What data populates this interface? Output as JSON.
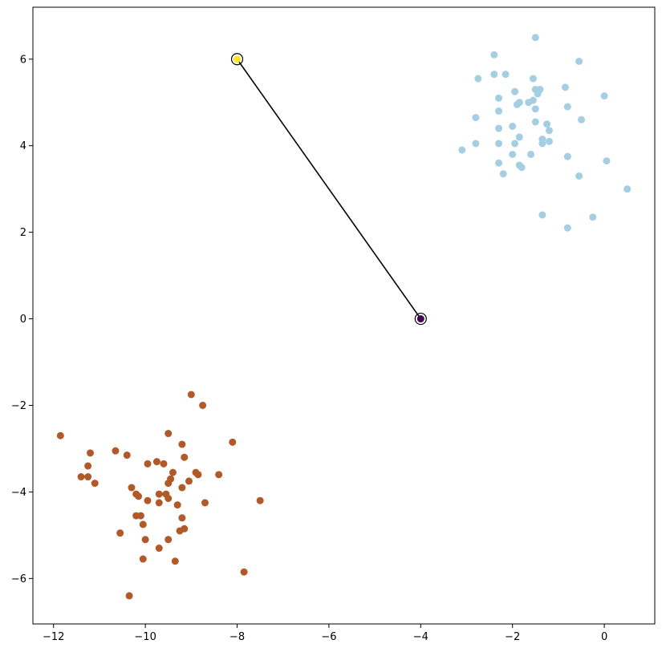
{
  "chart_data": {
    "type": "scatter",
    "title": "",
    "xlabel": "",
    "ylabel": "",
    "xlim": [
      -12.45,
      1.1
    ],
    "ylim": [
      -7.05,
      7.2
    ],
    "grid": false,
    "x_ticks": [
      -12,
      -10,
      -8,
      -6,
      -4,
      -2,
      0
    ],
    "y_ticks": [
      -6,
      -4,
      -2,
      0,
      2,
      4,
      6
    ],
    "series": [
      {
        "color": "#a6cee3",
        "points": [
          [
            -1.5,
            6.5
          ],
          [
            -2.4,
            6.1
          ],
          [
            -0.55,
            5.95
          ],
          [
            -2.4,
            5.65
          ],
          [
            -2.15,
            5.65
          ],
          [
            -2.75,
            5.55
          ],
          [
            -1.55,
            5.55
          ],
          [
            -0.85,
            5.35
          ],
          [
            -1.5,
            5.3
          ],
          [
            -1.4,
            5.3
          ],
          [
            -1.95,
            5.25
          ],
          [
            -1.45,
            5.2
          ],
          [
            0.0,
            5.15
          ],
          [
            -2.3,
            5.1
          ],
          [
            -1.55,
            5.05
          ],
          [
            -1.65,
            5.0
          ],
          [
            -1.85,
            5.0
          ],
          [
            -1.9,
            4.95
          ],
          [
            -0.8,
            4.9
          ],
          [
            -1.5,
            4.85
          ],
          [
            -2.3,
            4.8
          ],
          [
            -2.8,
            4.65
          ],
          [
            -0.5,
            4.6
          ],
          [
            -1.5,
            4.55
          ],
          [
            -1.25,
            4.5
          ],
          [
            -2.0,
            4.45
          ],
          [
            -2.3,
            4.4
          ],
          [
            -1.2,
            4.35
          ],
          [
            -1.85,
            4.2
          ],
          [
            -1.35,
            4.15
          ],
          [
            -1.2,
            4.1
          ],
          [
            -2.3,
            4.05
          ],
          [
            -2.8,
            4.05
          ],
          [
            -1.95,
            4.05
          ],
          [
            -1.35,
            4.05
          ],
          [
            -3.1,
            3.9
          ],
          [
            -2.0,
            3.8
          ],
          [
            -1.6,
            3.8
          ],
          [
            -0.8,
            3.75
          ],
          [
            0.05,
            3.65
          ],
          [
            -2.3,
            3.6
          ],
          [
            -1.85,
            3.55
          ],
          [
            -1.8,
            3.5
          ],
          [
            -2.2,
            3.35
          ],
          [
            -0.55,
            3.3
          ],
          [
            0.5,
            3.0
          ],
          [
            -1.35,
            2.4
          ],
          [
            -0.25,
            2.35
          ],
          [
            -0.8,
            2.1
          ]
        ]
      },
      {
        "color": "#b15928",
        "points": [
          [
            -9.0,
            -1.75
          ],
          [
            -8.75,
            -2.0
          ],
          [
            -11.85,
            -2.7
          ],
          [
            -9.5,
            -2.65
          ],
          [
            -8.1,
            -2.85
          ],
          [
            -9.2,
            -2.9
          ],
          [
            -10.65,
            -3.05
          ],
          [
            -11.2,
            -3.1
          ],
          [
            -10.4,
            -3.15
          ],
          [
            -9.15,
            -3.2
          ],
          [
            -9.75,
            -3.3
          ],
          [
            -9.95,
            -3.35
          ],
          [
            -9.6,
            -3.35
          ],
          [
            -11.25,
            -3.4
          ],
          [
            -9.4,
            -3.55
          ],
          [
            -8.9,
            -3.55
          ],
          [
            -8.85,
            -3.6
          ],
          [
            -8.4,
            -3.6
          ],
          [
            -11.4,
            -3.65
          ],
          [
            -11.25,
            -3.65
          ],
          [
            -9.45,
            -3.7
          ],
          [
            -9.05,
            -3.75
          ],
          [
            -11.1,
            -3.8
          ],
          [
            -9.5,
            -3.8
          ],
          [
            -9.2,
            -3.9
          ],
          [
            -10.3,
            -3.9
          ],
          [
            -9.7,
            -4.05
          ],
          [
            -9.55,
            -4.05
          ],
          [
            -10.2,
            -4.05
          ],
          [
            -10.15,
            -4.1
          ],
          [
            -9.5,
            -4.15
          ],
          [
            -9.95,
            -4.2
          ],
          [
            -7.5,
            -4.2
          ],
          [
            -9.7,
            -4.25
          ],
          [
            -8.7,
            -4.25
          ],
          [
            -9.3,
            -4.3
          ],
          [
            -10.2,
            -4.55
          ],
          [
            -10.1,
            -4.55
          ],
          [
            -9.2,
            -4.6
          ],
          [
            -10.05,
            -4.75
          ],
          [
            -9.15,
            -4.85
          ],
          [
            -9.25,
            -4.9
          ],
          [
            -10.55,
            -4.95
          ],
          [
            -10.0,
            -5.1
          ],
          [
            -9.5,
            -5.1
          ],
          [
            -9.7,
            -5.3
          ],
          [
            -10.05,
            -5.55
          ],
          [
            -9.35,
            -5.6
          ],
          [
            -7.85,
            -5.85
          ],
          [
            -10.35,
            -6.4
          ]
        ]
      }
    ],
    "centroids": [
      {
        "x": -8.0,
        "y": 6.0,
        "color": "#fde725"
      },
      {
        "x": -4.0,
        "y": 0.0,
        "color": "#440154"
      }
    ],
    "connector": {
      "from": [
        -8.0,
        6.0
      ],
      "to": [
        -4.0,
        0.0
      ],
      "color": "#000000"
    }
  }
}
